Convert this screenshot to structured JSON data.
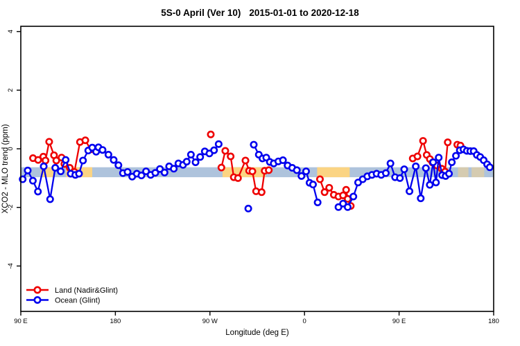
{
  "chart_data": {
    "type": "line",
    "title": "5S-0 April (Ver 10)   2015-01-01 to 2020-12-18",
    "title_parts": [
      "5S-0 April (Ver 10)",
      "2015-01-01 to 2020-12-18"
    ],
    "xlabel": "Longitude (deg E)",
    "ylabel": "XCO2 - MLO trend (ppm)",
    "xlim": [
      90,
      540
    ],
    "ylim": [
      -5.55,
      4.2
    ],
    "grid": false,
    "legend_position": "bottom-left-inside",
    "x_ticks": [
      {
        "lon": 90,
        "label": "90 E"
      },
      {
        "lon": 180,
        "label": "180"
      },
      {
        "lon": 270,
        "label": "90 W"
      },
      {
        "lon": 360,
        "label": "0"
      },
      {
        "lon": 450,
        "label": "90 E"
      },
      {
        "lon": 540,
        "label": "180"
      }
    ],
    "y_ticks": [
      {
        "value": -4,
        "label": "-4"
      },
      {
        "value": -2,
        "label": "-2"
      },
      {
        "value": 0,
        "label": "0"
      },
      {
        "value": 2,
        "label": "2"
      },
      {
        "value": 4,
        "label": "4"
      }
    ],
    "band": {
      "description": "latitude-band surface-type strip (ocean vs land)",
      "value_top": -0.63,
      "value_bottom": -0.97,
      "ocean_color": "#aec3dc",
      "land_color": "#fbd483",
      "ocean_segment": [
        90,
        540
      ],
      "land_segments": [
        [
          109,
          121
        ],
        [
          133,
          158
        ],
        [
          282,
          323
        ],
        [
          372,
          403
        ]
      ],
      "faint_land_segments": [
        [
          506,
          516
        ],
        [
          519,
          531
        ]
      ]
    },
    "series": [
      {
        "name": "Land (Nadir&Glint)",
        "color": "#ee0000",
        "marker": "open-circle",
        "segments": [
          [
            [
              101.6,
              -0.32
            ],
            [
              106.5,
              -0.38
            ],
            [
              111.4,
              -0.27
            ],
            [
              113.5,
              -0.4
            ],
            [
              117,
              0.24
            ],
            [
              121.6,
              -0.22
            ],
            [
              123.8,
              -0.4
            ],
            [
              128.8,
              -0.3
            ],
            [
              131.5,
              -0.52
            ],
            [
              136.6,
              -0.65
            ],
            [
              141,
              -0.79
            ],
            [
              146.3,
              0.23
            ],
            [
              151.4,
              0.29
            ],
            [
              156.4,
              -0.02
            ]
          ],
          [
            [
              270.8,
              0.49
            ]
          ],
          [
            [
              280.9,
              -0.64
            ],
            [
              284.6,
              -0.07
            ],
            [
              289.7,
              -0.26
            ],
            [
              292.7,
              -0.97
            ],
            [
              296.7,
              -1.0
            ],
            [
              303.8,
              -0.4
            ],
            [
              307.3,
              -0.75
            ],
            [
              310.4,
              -0.77
            ],
            [
              313.9,
              -1.45
            ],
            [
              319.2,
              -1.48
            ],
            [
              322.1,
              -0.75
            ],
            [
              326,
              -0.73
            ]
          ],
          [
            [
              374.7,
              -1.04
            ],
            [
              379.1,
              -1.48
            ],
            [
              383.5,
              -1.33
            ],
            [
              387.9,
              -1.57
            ],
            [
              392.3,
              -1.63
            ],
            [
              396.7,
              -1.59
            ],
            [
              399.6,
              -1.4
            ],
            [
              401.1,
              -1.71
            ],
            [
              404,
              -1.95
            ]
          ],
          [
            [
              463,
              -0.33
            ],
            [
              467.5,
              -0.26
            ],
            [
              472.8,
              0.27
            ],
            [
              476.3,
              -0.21
            ],
            [
              479.3,
              -0.35
            ],
            [
              481.8,
              -0.47
            ],
            [
              486,
              -0.57
            ],
            [
              490.5,
              -0.68
            ],
            [
              493.7,
              -0.78
            ],
            [
              496.3,
              0.22
            ]
          ],
          [
            [
              505.4,
              0.14
            ],
            [
              508.4,
              0.11
            ]
          ]
        ]
      },
      {
        "name": "Ocean (Glint)",
        "color": "#0000ee",
        "marker": "open-circle",
        "segments": [
          [
            [
              91.8,
              -1.04
            ],
            [
              96.6,
              -0.74
            ],
            [
              101.5,
              -1.09
            ],
            [
              106.3,
              -1.46
            ],
            [
              111.8,
              -0.6
            ],
            [
              117.9,
              -1.72
            ],
            [
              122.8,
              -0.65
            ],
            [
              128,
              -0.77
            ],
            [
              132.7,
              -0.38
            ],
            [
              137.5,
              -0.85
            ],
            [
              141.9,
              -0.89
            ],
            [
              145.4,
              -0.85
            ],
            [
              149.2,
              -0.4
            ],
            [
              154.2,
              -0.06
            ],
            [
              158,
              0.04
            ],
            [
              161.7,
              -0.1
            ],
            [
              163.9,
              0.05
            ],
            [
              167.8,
              -0.04
            ],
            [
              173.4,
              -0.2
            ],
            [
              178.4,
              -0.38
            ],
            [
              182.9,
              -0.56
            ],
            [
              187.2,
              -0.83
            ],
            [
              191.6,
              -0.79
            ],
            [
              196,
              -0.95
            ],
            [
              200.4,
              -0.85
            ],
            [
              204.8,
              -0.91
            ],
            [
              209.2,
              -0.77
            ],
            [
              213.6,
              -0.89
            ],
            [
              218,
              -0.82
            ],
            [
              222.4,
              -0.69
            ],
            [
              226.8,
              -0.81
            ],
            [
              231.2,
              -0.6
            ],
            [
              235.6,
              -0.68
            ],
            [
              240,
              -0.5
            ],
            [
              244.4,
              -0.55
            ],
            [
              247.9,
              -0.44
            ],
            [
              251.9,
              -0.2
            ],
            [
              256.3,
              -0.46
            ],
            [
              260.7,
              -0.28
            ],
            [
              265.1,
              -0.09
            ],
            [
              269.5,
              -0.16
            ],
            [
              273.9,
              -0.05
            ],
            [
              278.3,
              0.16
            ]
          ],
          [
            [
              306.5,
              -2.04
            ]
          ],
          [
            [
              311.7,
              0.14
            ],
            [
              316.5,
              -0.2
            ],
            [
              320,
              -0.33
            ],
            [
              323.6,
              -0.3
            ],
            [
              327,
              -0.45
            ],
            [
              330.7,
              -0.5
            ],
            [
              335.1,
              -0.43
            ],
            [
              339.5,
              -0.39
            ],
            [
              343.9,
              -0.57
            ],
            [
              348.3,
              -0.65
            ],
            [
              352.7,
              -0.73
            ],
            [
              357.1,
              -0.93
            ],
            [
              361.5,
              -0.77
            ],
            [
              364.8,
              -1.16
            ],
            [
              368.1,
              -1.22
            ],
            [
              372.5,
              -1.83
            ]
          ],
          [
            [
              392.3,
              -1.99
            ],
            [
              396.7,
              -1.87
            ],
            [
              401.1,
              -1.99
            ],
            [
              406.5,
              -1.63
            ],
            [
              411,
              -1.15
            ],
            [
              415.4,
              -1.04
            ],
            [
              419.8,
              -0.94
            ],
            [
              424.2,
              -0.89
            ],
            [
              428.6,
              -0.85
            ],
            [
              433,
              -0.89
            ],
            [
              437.4,
              -0.83
            ],
            [
              441.8,
              -0.5
            ],
            [
              446.2,
              -0.97
            ],
            [
              450.8,
              -1.0
            ],
            [
              454.9,
              -0.7
            ],
            [
              459.9,
              -1.45
            ],
            [
              465.9,
              -0.6
            ],
            [
              470.6,
              -1.69
            ],
            [
              475.5,
              -0.66
            ],
            [
              479.2,
              -1.23
            ],
            [
              482.4,
              -0.46
            ],
            [
              485.1,
              -1.15
            ],
            [
              487.7,
              -0.3
            ],
            [
              491,
              -0.9
            ],
            [
              494.3,
              -0.93
            ],
            [
              497.5,
              -0.85
            ],
            [
              500.2,
              -0.46
            ],
            [
              504.1,
              -0.24
            ],
            [
              507.8,
              -0.05
            ],
            [
              511.3,
              -0.02
            ],
            [
              514.5,
              -0.07
            ],
            [
              517.8,
              -0.08
            ],
            [
              521,
              -0.08
            ],
            [
              524,
              -0.21
            ],
            [
              527.2,
              -0.28
            ],
            [
              530.5,
              -0.39
            ],
            [
              533.8,
              -0.53
            ],
            [
              536.3,
              -0.63
            ]
          ]
        ]
      }
    ],
    "legend": {
      "items": [
        {
          "label": "Land (Nadir&Glint)",
          "color": "#ee0000"
        },
        {
          "label": "Ocean (Glint)",
          "color": "#0000ee"
        }
      ]
    }
  },
  "layout_colors": {
    "frame": "#000000",
    "background": "#ffffff"
  }
}
